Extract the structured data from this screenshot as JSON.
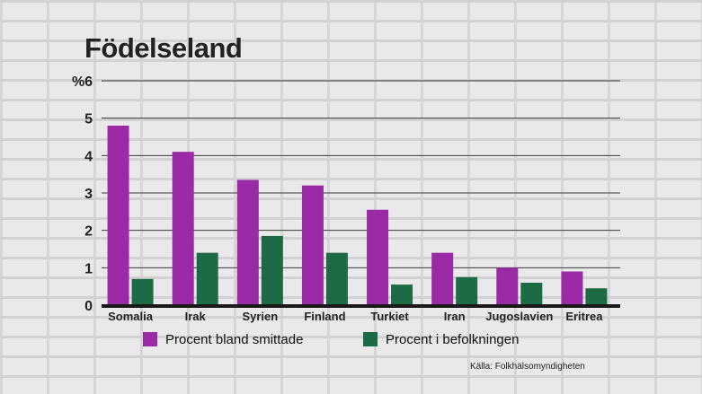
{
  "chart_data": {
    "type": "bar",
    "title": "Födelseland",
    "ylabel": "%",
    "ylim": [
      0,
      6
    ],
    "yticks": [
      0,
      1,
      2,
      3,
      4,
      5,
      6
    ],
    "grid": true,
    "categories": [
      "Somalia",
      "Irak",
      "Syrien",
      "Finland",
      "Turkiet",
      "Iran",
      "Jugoslavien",
      "Eritrea"
    ],
    "series": [
      {
        "name": "Procent bland smittade",
        "color": "#9b2aa6",
        "values": [
          4.8,
          4.1,
          3.35,
          3.2,
          2.55,
          1.4,
          1.0,
          0.9
        ]
      },
      {
        "name": "Procent i befolkningen",
        "color": "#1c6b44",
        "values": [
          0.7,
          1.4,
          1.85,
          1.4,
          0.55,
          0.75,
          0.6,
          0.45
        ]
      }
    ],
    "legend_position": "bottom",
    "source": "Källa: Folkhälsomyndigheten"
  }
}
